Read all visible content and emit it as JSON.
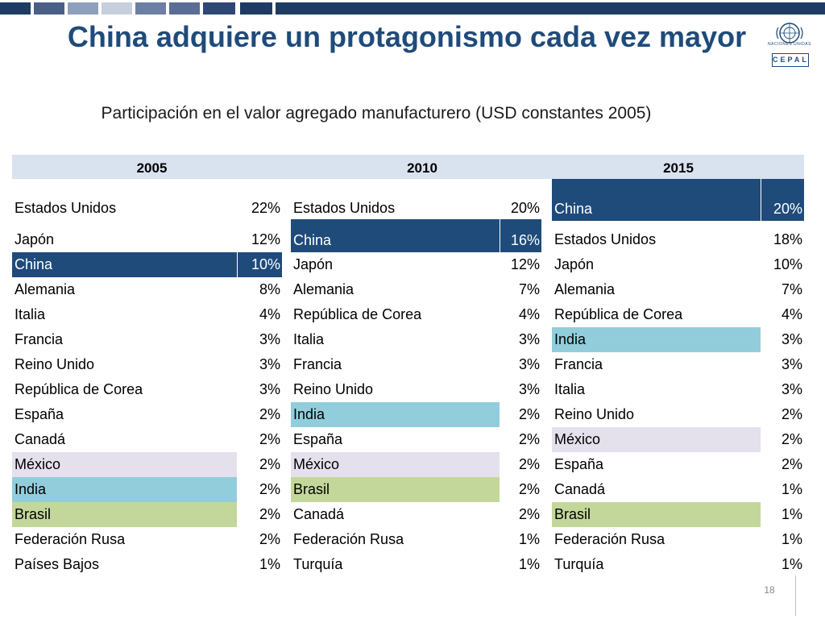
{
  "title": "China adquiere un protagonismo cada vez mayor",
  "subtitle": "Participación en el valor agregado manufacturero (USD constantes 2005)",
  "logo": {
    "un_text": "NACIONES UNIDAS",
    "cepal_text": "CEPAL",
    "icon": "un-emblem-icon"
  },
  "colors": {
    "navy": "#1f4b7b",
    "teal": "#92cddc",
    "lavender": "#e4e0ec",
    "green": "#c4d79b",
    "header_bg": "#d9e2ef"
  },
  "table": {
    "years": [
      "2005",
      "2010",
      "2015"
    ],
    "columns": [
      {
        "year": "2005",
        "rows": [
          {
            "country": "Estados Unidos",
            "share": "22%",
            "highlight": ""
          },
          {
            "country": "Japón",
            "share": "12%",
            "highlight": ""
          },
          {
            "country": "China",
            "share": "10%",
            "highlight": "navy"
          },
          {
            "country": "Alemania",
            "share": "8%",
            "highlight": ""
          },
          {
            "country": "Italia",
            "share": "4%",
            "highlight": ""
          },
          {
            "country": "Francia",
            "share": "3%",
            "highlight": ""
          },
          {
            "country": "Reino Unido",
            "share": "3%",
            "highlight": ""
          },
          {
            "country": "República de Corea",
            "share": "3%",
            "highlight": ""
          },
          {
            "country": "España",
            "share": "2%",
            "highlight": ""
          },
          {
            "country": "Canadá",
            "share": "2%",
            "highlight": ""
          },
          {
            "country": "México",
            "share": "2%",
            "highlight": "lavender"
          },
          {
            "country": "India",
            "share": "2%",
            "highlight": "teal"
          },
          {
            "country": "Brasil",
            "share": "2%",
            "highlight": "green"
          },
          {
            "country": "Federación Rusa",
            "share": "2%",
            "highlight": ""
          },
          {
            "country": "Países Bajos",
            "share": "1%",
            "highlight": ""
          }
        ]
      },
      {
        "year": "2010",
        "rows": [
          {
            "country": "Estados Unidos",
            "share": "20%",
            "highlight": ""
          },
          {
            "country": "China",
            "share": "16%",
            "highlight": "navy"
          },
          {
            "country": "Japón",
            "share": "12%",
            "highlight": ""
          },
          {
            "country": "Alemania",
            "share": "7%",
            "highlight": ""
          },
          {
            "country": "República de Corea",
            "share": "4%",
            "highlight": ""
          },
          {
            "country": "Italia",
            "share": "3%",
            "highlight": ""
          },
          {
            "country": "Francia",
            "share": "3%",
            "highlight": ""
          },
          {
            "country": "Reino Unido",
            "share": "3%",
            "highlight": ""
          },
          {
            "country": "India",
            "share": "2%",
            "highlight": "teal"
          },
          {
            "country": "España",
            "share": "2%",
            "highlight": ""
          },
          {
            "country": "México",
            "share": "2%",
            "highlight": "lavender"
          },
          {
            "country": "Brasil",
            "share": "2%",
            "highlight": "green"
          },
          {
            "country": "Canadá",
            "share": "2%",
            "highlight": ""
          },
          {
            "country": "Federación Rusa",
            "share": "1%",
            "highlight": ""
          },
          {
            "country": "Turquía",
            "share": "1%",
            "highlight": ""
          }
        ]
      },
      {
        "year": "2015",
        "rows": [
          {
            "country": "China",
            "share": "20%",
            "highlight": "navy"
          },
          {
            "country": "Estados Unidos",
            "share": "18%",
            "highlight": ""
          },
          {
            "country": "Japón",
            "share": "10%",
            "highlight": ""
          },
          {
            "country": "Alemania",
            "share": "7%",
            "highlight": ""
          },
          {
            "country": "República de Corea",
            "share": "4%",
            "highlight": ""
          },
          {
            "country": "India",
            "share": "3%",
            "highlight": "teal"
          },
          {
            "country": "Francia",
            "share": "3%",
            "highlight": ""
          },
          {
            "country": "Italia",
            "share": "3%",
            "highlight": ""
          },
          {
            "country": "Reino Unido",
            "share": "2%",
            "highlight": ""
          },
          {
            "country": "México",
            "share": "2%",
            "highlight": "lavender"
          },
          {
            "country": "España",
            "share": "2%",
            "highlight": ""
          },
          {
            "country": "Canadá",
            "share": "1%",
            "highlight": ""
          },
          {
            "country": "Brasil",
            "share": "1%",
            "highlight": "green"
          },
          {
            "country": "Federación Rusa",
            "share": "1%",
            "highlight": ""
          },
          {
            "country": "Turquía",
            "share": "1%",
            "highlight": ""
          }
        ]
      }
    ]
  },
  "page_number": "18"
}
